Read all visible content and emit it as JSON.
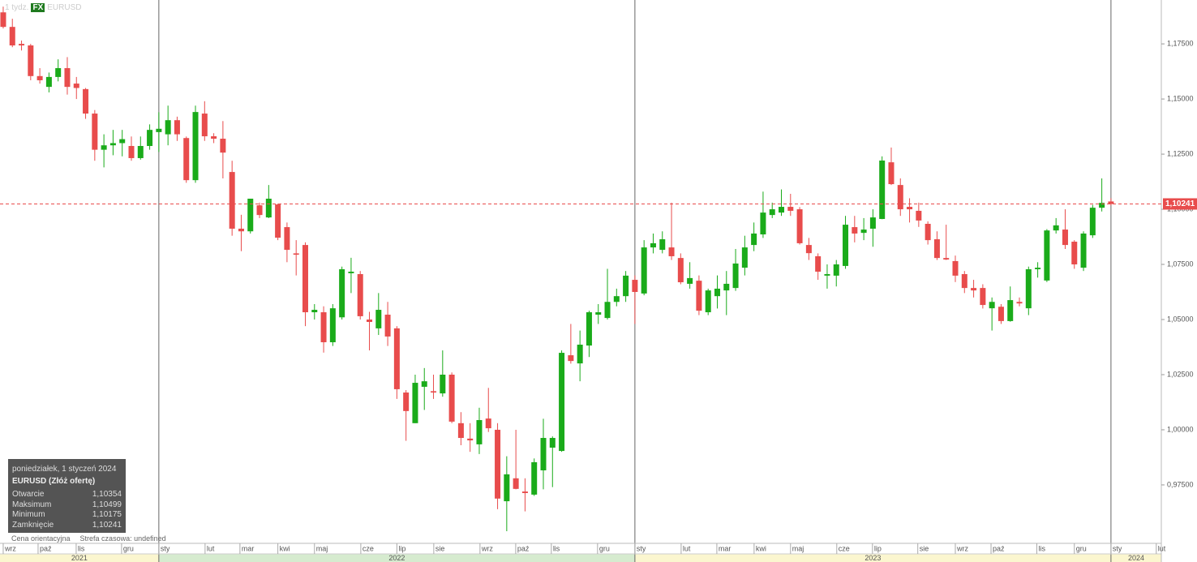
{
  "header": {
    "interval": "1 tydz.",
    "badge": "FX",
    "symbol": "EURUSD"
  },
  "info": {
    "date": "poniedziałek, 1 styczeń 2024",
    "instrument": "EURUSD (Złóż ofertę)",
    "rows": [
      [
        "Otwarcie",
        "1,10354"
      ],
      [
        "Maksimum",
        "1,10499"
      ],
      [
        "Minimum",
        "1,10175"
      ],
      [
        "Zamknięcie",
        "1,10241"
      ]
    ]
  },
  "footer": {
    "note": "Cena orientacyjna",
    "timezone": "Strefa czasowa: undefined"
  },
  "chart_data": {
    "type": "candlestick",
    "up_color": "#1aab1a",
    "down_color": "#e84c4c",
    "x": [
      0,
      1,
      2,
      3,
      4,
      5,
      6,
      7,
      8,
      9,
      10,
      11,
      12,
      13,
      14,
      15,
      16,
      17,
      18,
      19,
      20,
      21,
      22,
      23,
      24,
      25,
      26,
      27,
      28,
      29,
      30,
      31,
      32,
      33,
      34,
      35,
      36,
      37,
      38,
      39,
      40,
      41,
      42,
      43,
      44,
      45,
      46,
      47,
      48,
      49,
      50,
      51,
      52,
      53,
      54,
      55,
      56,
      57,
      58,
      59,
      60,
      61,
      62,
      63,
      64,
      65,
      66,
      67,
      68,
      69,
      70,
      71,
      72,
      73,
      74,
      75,
      76,
      77,
      78,
      79,
      80,
      81,
      82,
      83,
      84,
      85,
      86,
      87,
      88,
      89,
      90,
      91,
      92,
      93,
      94,
      95,
      96,
      97,
      98,
      99,
      100,
      101,
      102,
      103,
      104,
      105,
      106,
      107,
      108,
      109,
      110,
      111,
      112,
      113,
      114,
      115,
      116,
      117,
      118,
      119,
      120,
      121
    ],
    "open": [
      1.1893,
      1.1827,
      1.175,
      1.1743,
      1.1604,
      1.1555,
      1.16,
      1.164,
      1.157,
      1.1545,
      1.1434,
      1.127,
      1.129,
      1.13,
      1.1287,
      1.1232,
      1.1287,
      1.135,
      1.134,
      1.1404,
      1.1323,
      1.1132,
      1.1434,
      1.1331,
      1.132,
      1.1169,
      1.0912,
      1.09,
      1.1018,
      1.0963,
      1.1022,
      1.0919,
      1.08,
      1.0838,
      1.0533,
      1.0533,
      1.0397,
      1.051,
      1.071,
      1.0706,
      1.05,
      1.046,
      1.0522,
      1.046,
      1.0169,
      1.003,
      1.0195,
      1.0175,
      1.0165,
      1.025,
      1.003,
      0.996,
      0.9934,
      1.0051,
      1.0,
      0.9676,
      0.978,
      0.972,
      0.9706,
      0.9816,
      0.9919,
      0.9904,
      1.0338,
      1.0301,
      1.0382,
      1.0522,
      1.0507,
      1.058,
      1.0606,
      1.068,
      1.0618,
      1.0827,
      1.0816,
      1.0827,
      1.0779,
      1.0662,
      1.0676,
      1.0533,
      1.0606,
      1.0632,
      1.0643,
      1.0735,
      1.0838,
      1.0886,
      1.0974,
      1.0985,
      1.1011,
      1.1,
      1.0838,
      1.0787,
      1.0699,
      1.0699,
      1.0743,
      1.0919,
      1.0893,
      1.0912,
      1.0956,
      1.1213,
      1.111,
      1.1011,
      1.0993,
      1.0934,
      1.0864,
      1.0779,
      1.0765,
      1.0706,
      1.0643,
      1.0643,
      1.0551,
      1.0558,
      1.0493,
      1.058,
      1.0551,
      1.0728,
      1.0677,
      1.0904,
      1.0908,
      1.0853,
      1.0735,
      1.0882,
      1.1007,
      1.10354
    ],
    "high": [
      1.1919,
      1.1864,
      1.1765,
      1.175,
      1.164,
      1.162,
      1.168,
      1.169,
      1.16,
      1.155,
      1.145,
      1.134,
      1.136,
      1.136,
      1.133,
      1.133,
      1.1385,
      1.144,
      1.147,
      1.142,
      1.133,
      1.147,
      1.149,
      1.1345,
      1.14,
      1.122,
      1.0975,
      1.1048,
      1.103,
      1.111,
      1.1025,
      1.094,
      1.086,
      1.085,
      1.057,
      1.056,
      1.057,
      1.074,
      1.078,
      1.072,
      1.0535,
      1.062,
      1.058,
      1.047,
      1.018,
      1.025,
      1.028,
      1.025,
      1.036,
      1.026,
      1.008,
      1.003,
      1.01,
      1.019,
      1.003,
      0.988,
      1.0,
      0.978,
      0.987,
      1.005,
      0.997,
      1.036,
      1.048,
      1.045,
      1.054,
      1.057,
      1.073,
      1.064,
      1.072,
      1.07,
      1.086,
      1.089,
      1.09,
      1.103,
      1.08,
      1.076,
      1.07,
      1.064,
      1.07,
      1.072,
      1.082,
      1.088,
      1.094,
      1.108,
      1.103,
      1.109,
      1.107,
      1.101,
      1.087,
      1.08,
      1.075,
      1.077,
      1.097,
      1.097,
      1.096,
      1.1,
      1.124,
      1.128,
      1.114,
      1.105,
      1.103,
      1.0945,
      1.09,
      1.093,
      1.079,
      1.072,
      1.068,
      1.066,
      1.06,
      1.057,
      1.065,
      1.06,
      1.074,
      1.076,
      1.091,
      1.096,
      1.1,
      1.086,
      1.09,
      1.102,
      1.114,
      1.10499
    ],
    "low": [
      1.182,
      1.1735,
      1.172,
      1.1585,
      1.157,
      1.153,
      1.158,
      1.152,
      1.15,
      1.141,
      1.122,
      1.119,
      1.1245,
      1.124,
      1.122,
      1.1225,
      1.127,
      1.126,
      1.129,
      1.131,
      1.112,
      1.112,
      1.131,
      1.13,
      1.114,
      1.088,
      1.081,
      1.089,
      1.096,
      1.096,
      1.086,
      1.076,
      1.07,
      1.047,
      1.05,
      1.035,
      1.038,
      1.05,
      1.062,
      1.05,
      1.036,
      1.043,
      1.038,
      1.014,
      0.995,
      1.003,
      1.009,
      1.014,
      1.015,
      1.003,
      0.993,
      0.99,
      0.989,
      0.999,
      0.964,
      0.954,
      0.973,
      0.963,
      0.97,
      0.973,
      0.974,
      0.99,
      1.03,
      1.022,
      1.033,
      1.048,
      1.05,
      1.056,
      1.058,
      1.048,
      1.061,
      1.08,
      1.08,
      1.077,
      1.066,
      1.064,
      1.052,
      1.052,
      1.055,
      1.052,
      1.063,
      1.07,
      1.081,
      1.087,
      1.096,
      1.097,
      1.097,
      1.084,
      1.077,
      1.068,
      1.064,
      1.065,
      1.073,
      1.085,
      1.086,
      1.083,
      1.0955,
      1.111,
      1.097,
      1.094,
      1.092,
      1.084,
      1.077,
      1.077,
      1.067,
      1.062,
      1.06,
      1.055,
      1.045,
      1.048,
      1.049,
      1.056,
      1.052,
      1.069,
      1.067,
      1.089,
      1.082,
      1.073,
      1.072,
      1.087,
      1.099,
      1.10175
    ],
    "close": [
      1.1827,
      1.1743,
      1.1743,
      1.1604,
      1.1585,
      1.16,
      1.164,
      1.1555,
      1.155,
      1.1434,
      1.127,
      1.129,
      1.13,
      1.1318,
      1.1232,
      1.1287,
      1.136,
      1.1365,
      1.1404,
      1.134,
      1.1132,
      1.1441,
      1.1331,
      1.132,
      1.1257,
      1.0912,
      1.09,
      1.1048,
      1.0974,
      1.1048,
      1.0871,
      1.0816,
      1.0794,
      1.0533,
      1.0544,
      1.0397,
      1.0551,
      1.0728,
      1.0717,
      1.0515,
      1.0489,
      1.0544,
      1.0423,
      1.0184,
      1.0085,
      1.0213,
      1.022,
      1.0169,
      1.025,
      1.0037,
      0.9963,
      0.9952,
      1.0044,
      1.0007,
      0.9688,
      0.9798,
      0.9732,
      0.9713,
      0.9853,
      0.9963,
      0.9963,
      1.0349,
      1.0312,
      1.0386,
      1.0533,
      1.0533,
      1.058,
      1.0606,
      1.0699,
      1.0625,
      1.0827,
      1.0846,
      1.0864,
      1.0787,
      1.0669,
      1.0688,
      1.054,
      1.0632,
      1.064,
      1.0662,
      1.0754,
      1.0827,
      1.089,
      1.0985,
      1.1,
      1.1011,
      1.0993,
      1.0846,
      1.0801,
      1.0717,
      1.0706,
      1.075,
      1.093,
      1.089,
      1.0908,
      1.0963,
      1.1221,
      1.1114,
      1.1,
      1.1,
      1.0949,
      1.086,
      1.0779,
      1.0772,
      1.0699,
      1.0643,
      1.0632,
      1.0566,
      1.058,
      1.0493,
      1.0588,
      1.0573,
      1.0728,
      1.0735,
      1.0904,
      1.0927,
      1.0838,
      1.075,
      1.089,
      1.1007,
      1.1029,
      1.10241
    ],
    "xlim": [
      -0.35,
      126.5
    ],
    "ylim": [
      0.9485,
      1.1949
    ],
    "yticks": [
      {
        "value": 0.975,
        "label": "0,97500"
      },
      {
        "value": 1.0,
        "label": "1,00000"
      },
      {
        "value": 1.025,
        "label": "1,02500"
      },
      {
        "value": 1.05,
        "label": "1,05000"
      },
      {
        "value": 1.075,
        "label": "1,07500"
      },
      {
        "value": 1.1,
        "label": "1,10000"
      },
      {
        "value": 1.125,
        "label": "1,12500"
      },
      {
        "value": 1.15,
        "label": "1,15000"
      },
      {
        "value": 1.175,
        "label": "1,17500"
      }
    ],
    "xticks": [
      {
        "value": 0,
        "label": "wrz"
      },
      {
        "value": 3.81,
        "label": "paź"
      },
      {
        "value": 7.97,
        "label": "lis"
      },
      {
        "value": 12.93,
        "label": "gru"
      },
      {
        "value": 17.0,
        "label": "sty"
      },
      {
        "value": 22.05,
        "label": "lut"
      },
      {
        "value": 25.86,
        "label": "mar"
      },
      {
        "value": 30.0,
        "label": "kwi"
      },
      {
        "value": 34.0,
        "label": "maj"
      },
      {
        "value": 39.06,
        "label": "cze"
      },
      {
        "value": 43.0,
        "label": "lip"
      },
      {
        "value": 47.03,
        "label": "sie"
      },
      {
        "value": 52.08,
        "label": "wrz"
      },
      {
        "value": 55.98,
        "label": "paź"
      },
      {
        "value": 59.87,
        "label": "lis"
      },
      {
        "value": 64.92,
        "label": "gru"
      },
      {
        "value": 69.0,
        "label": "sty"
      },
      {
        "value": 74.05,
        "label": "lut"
      },
      {
        "value": 77.95,
        "label": "mar"
      },
      {
        "value": 82.02,
        "label": "kwi"
      },
      {
        "value": 86.0,
        "label": "maj"
      },
      {
        "value": 91.05,
        "label": "cze"
      },
      {
        "value": 94.95,
        "label": "lip"
      },
      {
        "value": 99.9,
        "label": "sie"
      },
      {
        "value": 104.0,
        "label": "wrz"
      },
      {
        "value": 107.9,
        "label": "paź"
      },
      {
        "value": 112.9,
        "label": "lis"
      },
      {
        "value": 117.0,
        "label": "gru"
      },
      {
        "value": 121.0,
        "label": "sty"
      },
      {
        "value": 125.95,
        "label": "lut"
      }
    ],
    "years": [
      {
        "label": "2021",
        "from": -0.35,
        "to": 17.0,
        "color": "#fbf6cf"
      },
      {
        "label": "2022",
        "from": 17.0,
        "to": 69.0,
        "color": "#d6ebcf"
      },
      {
        "label": "2023",
        "from": 69.0,
        "to": 121.0,
        "color": "#fbf6cf"
      },
      {
        "label": "2024",
        "from": 121.0,
        "to": 126.5,
        "color": "#fbf6cf"
      }
    ],
    "last_price": {
      "value": 1.10241,
      "label": "1,10241",
      "color": "#e84c4c"
    }
  }
}
